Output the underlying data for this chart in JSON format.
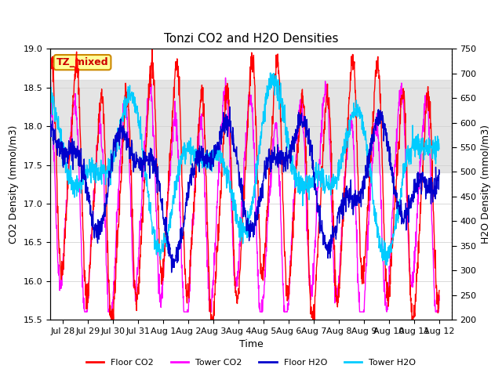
{
  "title": "Tonzi CO2 and H2O Densities",
  "xlabel": "Time",
  "ylabel_left": "CO2 Density (mmol/m3)",
  "ylabel_right": "H2O Density (mmol/m3)",
  "co2_ylim": [
    15.5,
    19.0
  ],
  "h2o_ylim": [
    200,
    750
  ],
  "co2_yticks": [
    15.5,
    16.0,
    16.5,
    17.0,
    17.5,
    18.0,
    18.5,
    19.0
  ],
  "h2o_yticks": [
    200,
    250,
    300,
    350,
    400,
    450,
    500,
    550,
    600,
    650,
    700,
    750
  ],
  "colors": {
    "floor_co2": "#FF0000",
    "tower_co2": "#FF00FF",
    "floor_h2o": "#0000CC",
    "tower_h2o": "#00CCFF"
  },
  "legend_labels": [
    "Floor CO2",
    "Tower CO2",
    "Floor H2O",
    "Tower H2O"
  ],
  "annotation_text": "TZ_mixed",
  "annotation_bg": "#FFFF99",
  "annotation_border": "#CC8800",
  "shading_co2_lo": 17.4,
  "shading_co2_hi": 18.6,
  "n_points": 1600,
  "xtick_dates": [
    "Jul 28",
    "Jul 29",
    "Jul 30",
    "Jul 31",
    "Aug 1",
    "Aug 2",
    "Aug 3",
    "Aug 4",
    "Aug 5",
    "Aug 6",
    "Aug 7",
    "Aug 8",
    "Aug 9",
    "Aug 10",
    "Aug 11",
    "Aug 12"
  ],
  "line_width": 1.0,
  "background_color": "#FFFFFF",
  "plot_bg": "#FFFFFF"
}
